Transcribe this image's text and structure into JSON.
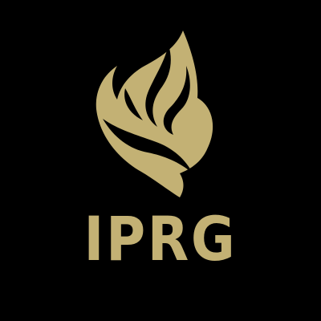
{
  "logo": {
    "mark_icon": "flame-icon",
    "wordmark": "IPRG"
  },
  "colors": {
    "background": "#000000",
    "gold": "#c3b174"
  }
}
